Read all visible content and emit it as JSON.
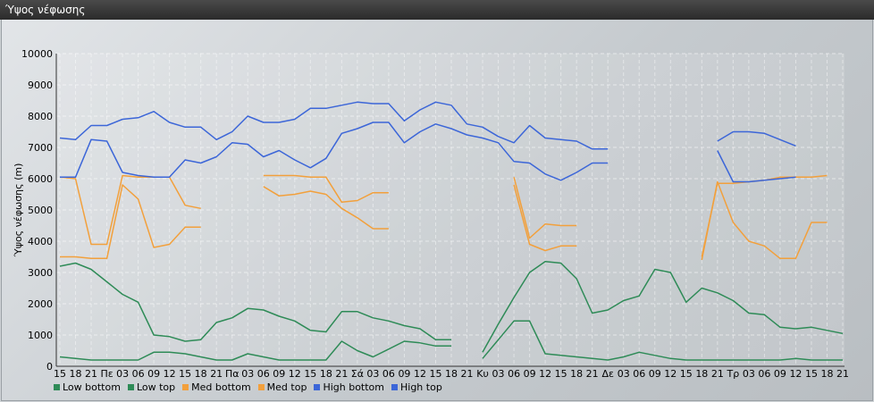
{
  "window": {
    "title": "Ύψος νέφωσης"
  },
  "chart_data": {
    "type": "line",
    "title": "",
    "ylabel": "Ύψος νέφωσης (m)",
    "xlabel": "",
    "ylim": [
      0,
      10000
    ],
    "yticks": [
      0,
      1000,
      2000,
      3000,
      4000,
      5000,
      6000,
      7000,
      8000,
      9000,
      10000
    ],
    "grid": true,
    "legend_position": "bottom-left",
    "x_tick_labels": [
      "15",
      "18",
      "21",
      "Πε",
      "03",
      "06",
      "09",
      "12",
      "15",
      "18",
      "21",
      "Πα",
      "03",
      "06",
      "09",
      "12",
      "15",
      "18",
      "21",
      "Σά",
      "03",
      "06",
      "09",
      "12",
      "15",
      "18",
      "21",
      "Κυ",
      "03",
      "06",
      "09",
      "12",
      "15",
      "18",
      "21",
      "Δε",
      "03",
      "06",
      "09",
      "12",
      "15",
      "18",
      "21",
      "Τρ",
      "03",
      "06",
      "09",
      "12",
      "15",
      "18",
      "21"
    ],
    "series": [
      {
        "name": "Low bottom",
        "color": "#2e8b57",
        "values": [
          300,
          250,
          200,
          200,
          200,
          200,
          450,
          450,
          400,
          300,
          200,
          200,
          400,
          300,
          200,
          200,
          200,
          200,
          800,
          500,
          300,
          550,
          800,
          750,
          650,
          650,
          null,
          250,
          850,
          1450,
          1450,
          400,
          350,
          300,
          250,
          200,
          300,
          450,
          350,
          250,
          200,
          200,
          200,
          200,
          200,
          200,
          200,
          250,
          200,
          200,
          200
        ]
      },
      {
        "name": "Low top",
        "color": "#2e8b57",
        "values": [
          3200,
          3300,
          3100,
          2700,
          2300,
          2050,
          1000,
          950,
          800,
          850,
          1400,
          1550,
          1850,
          1800,
          1600,
          1450,
          1150,
          1100,
          1750,
          1750,
          1550,
          1450,
          1300,
          1200,
          850,
          850,
          null,
          450,
          1350,
          2200,
          3000,
          3350,
          3300,
          2800,
          1700,
          1800,
          2100,
          2250,
          3100,
          3000,
          2050,
          2500,
          2350,
          2100,
          1700,
          1650,
          1250,
          1200,
          1250,
          1150,
          1050
        ]
      },
      {
        "name": "Med bottom",
        "color": "#f2a03c",
        "values": [
          3500,
          3500,
          3450,
          3450,
          5800,
          5350,
          3800,
          3900,
          4450,
          4450,
          null,
          null,
          null,
          5750,
          5450,
          5500,
          5600,
          5500,
          5050,
          4750,
          4400,
          4400,
          null,
          null,
          null,
          null,
          null,
          null,
          null,
          5800,
          3900,
          3700,
          3850,
          3850,
          null,
          null,
          null,
          null,
          null,
          null,
          null,
          3400,
          5900,
          4600,
          4000,
          3850,
          3450,
          3450,
          4600,
          4600,
          null
        ]
      },
      {
        "name": "Med top",
        "color": "#f2a03c",
        "values": [
          6050,
          6000,
          3900,
          3900,
          6100,
          6050,
          6050,
          6050,
          5150,
          5050,
          null,
          null,
          null,
          6100,
          6100,
          6100,
          6050,
          6050,
          5250,
          5300,
          5550,
          5550,
          null,
          null,
          null,
          null,
          null,
          null,
          null,
          6050,
          4100,
          4550,
          4500,
          4500,
          null,
          null,
          null,
          null,
          null,
          null,
          null,
          3500,
          5850,
          5850,
          5900,
          5950,
          6050,
          6050,
          6050,
          6100,
          null
        ]
      },
      {
        "name": "High bottom",
        "color": "#3c66d8",
        "values": [
          6050,
          6050,
          7250,
          7200,
          6200,
          6100,
          6050,
          6050,
          6600,
          6500,
          6700,
          7150,
          7100,
          6700,
          6900,
          6600,
          6350,
          6650,
          7450,
          7600,
          7800,
          7800,
          7150,
          7500,
          7750,
          7600,
          7400,
          7300,
          7150,
          6550,
          6500,
          6150,
          5950,
          6200,
          6500,
          6500,
          null,
          null,
          null,
          null,
          null,
          null,
          6900,
          5900,
          5900,
          5950,
          6000,
          6050,
          null,
          null,
          null
        ]
      },
      {
        "name": "High top",
        "color": "#3c66d8",
        "values": [
          7300,
          7250,
          7700,
          7700,
          7900,
          7950,
          8150,
          7800,
          7650,
          7650,
          7250,
          7500,
          8000,
          7800,
          7800,
          7900,
          8250,
          8250,
          8350,
          8450,
          8400,
          8400,
          7850,
          8200,
          8450,
          8350,
          7750,
          7650,
          7350,
          7150,
          7700,
          7300,
          7250,
          7200,
          6950,
          6950,
          null,
          null,
          null,
          null,
          null,
          null,
          7200,
          7500,
          7500,
          7450,
          7250,
          7050,
          null,
          null,
          null
        ]
      }
    ]
  }
}
